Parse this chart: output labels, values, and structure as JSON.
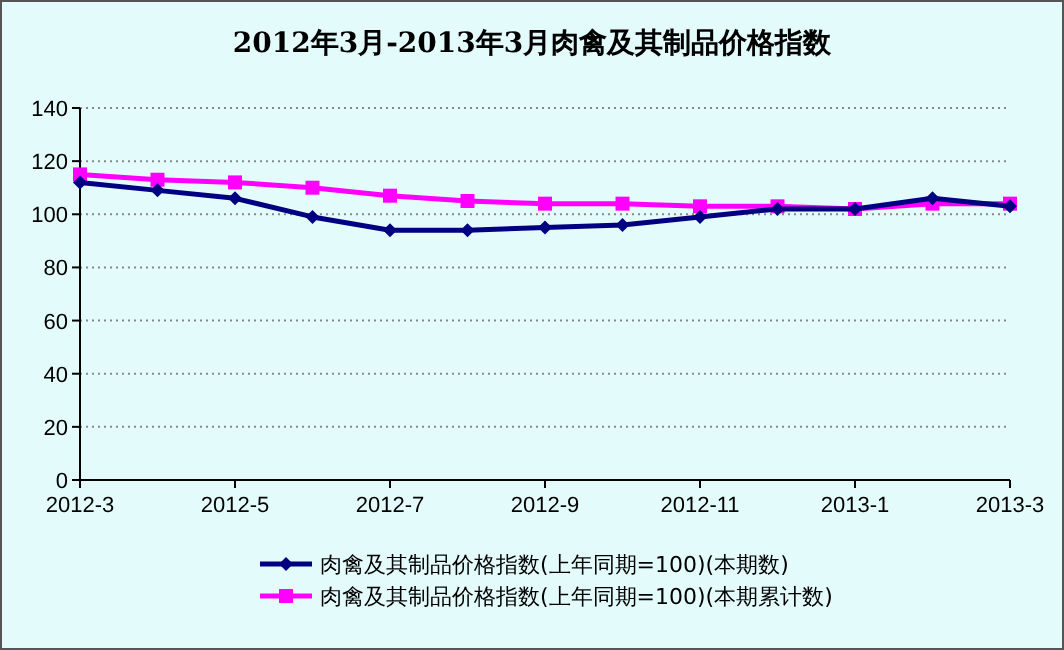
{
  "chart_data": {
    "type": "line",
    "title": "2012年3月-2013年3月肉禽及其制品价格指数",
    "categories": [
      "2012-3",
      null,
      "2012-5",
      null,
      "2012-7",
      null,
      "2012-9",
      null,
      "2012-11",
      null,
      "2013-1",
      null,
      "2013-3"
    ],
    "series": [
      {
        "name": "肉禽及其制品价格指数(上年同期=100)(本期数)",
        "color": "#000080",
        "marker": "diamond",
        "values": [
          112,
          109,
          106,
          99,
          94,
          94,
          95,
          96,
          99,
          102,
          102,
          106,
          103
        ]
      },
      {
        "name": "肉禽及其制品价格指数(上年同期=100)(本期累计数)",
        "color": "#ff00ff",
        "marker": "square",
        "values": [
          115,
          113,
          112,
          110,
          107,
          105,
          104,
          104,
          103,
          103,
          102,
          104,
          104
        ]
      }
    ],
    "ylim": [
      0,
      140
    ],
    "yticks": [
      0,
      20,
      40,
      60,
      80,
      100,
      120,
      140
    ],
    "grid": "y",
    "legend": "bottom"
  }
}
